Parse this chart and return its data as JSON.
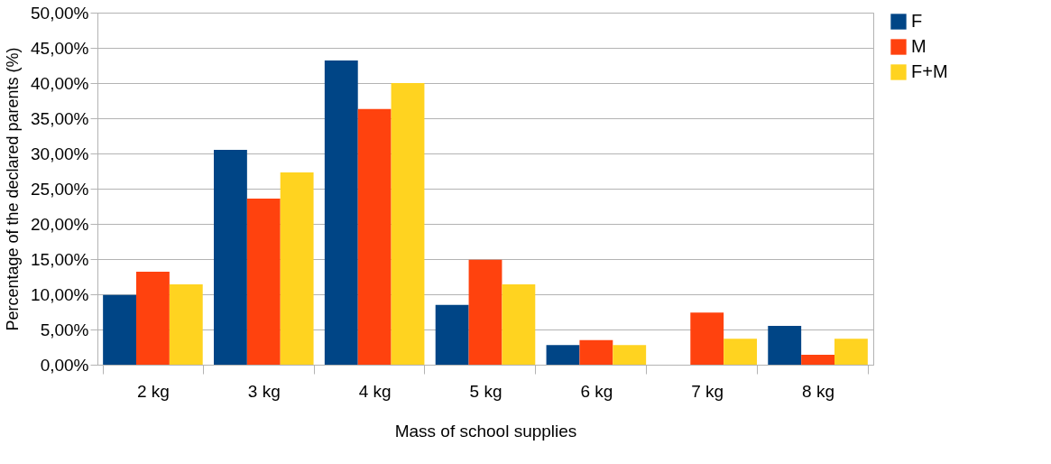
{
  "chart_data": {
    "type": "bar",
    "xlabel": "Mass of school supplies",
    "ylabel": "Percentage of the declared parents (%)",
    "categories": [
      "2 kg",
      "3 kg",
      "4 kg",
      "5 kg",
      "6 kg",
      "7 kg",
      "8 kg"
    ],
    "series": [
      {
        "name": "F",
        "color": "#004586",
        "values": [
          9.9,
          30.5,
          43.2,
          8.5,
          2.8,
          0,
          5.5
        ]
      },
      {
        "name": "M",
        "color": "#ff420e",
        "values": [
          13.2,
          23.6,
          36.3,
          14.9,
          3.5,
          7.4,
          1.4
        ]
      },
      {
        "name": "F+M",
        "color": "#ffd320",
        "values": [
          11.4,
          27.3,
          40.0,
          11.4,
          2.8,
          3.7,
          3.7
        ]
      }
    ],
    "ylim": [
      0,
      50
    ],
    "yticks": [
      {
        "value": 0,
        "label": "0,00%"
      },
      {
        "value": 5,
        "label": "5,00%"
      },
      {
        "value": 10,
        "label": "10,00%"
      },
      {
        "value": 15,
        "label": "15,00%"
      },
      {
        "value": 20,
        "label": "20,00%"
      },
      {
        "value": 25,
        "label": "25,00%"
      },
      {
        "value": 30,
        "label": "30,00%"
      },
      {
        "value": 35,
        "label": "35,00%"
      },
      {
        "value": 40,
        "label": "40,00%"
      },
      {
        "value": 45,
        "label": "45,00%"
      },
      {
        "value": 50,
        "label": "50,00%"
      }
    ],
    "grid": "y",
    "legend": "right"
  }
}
